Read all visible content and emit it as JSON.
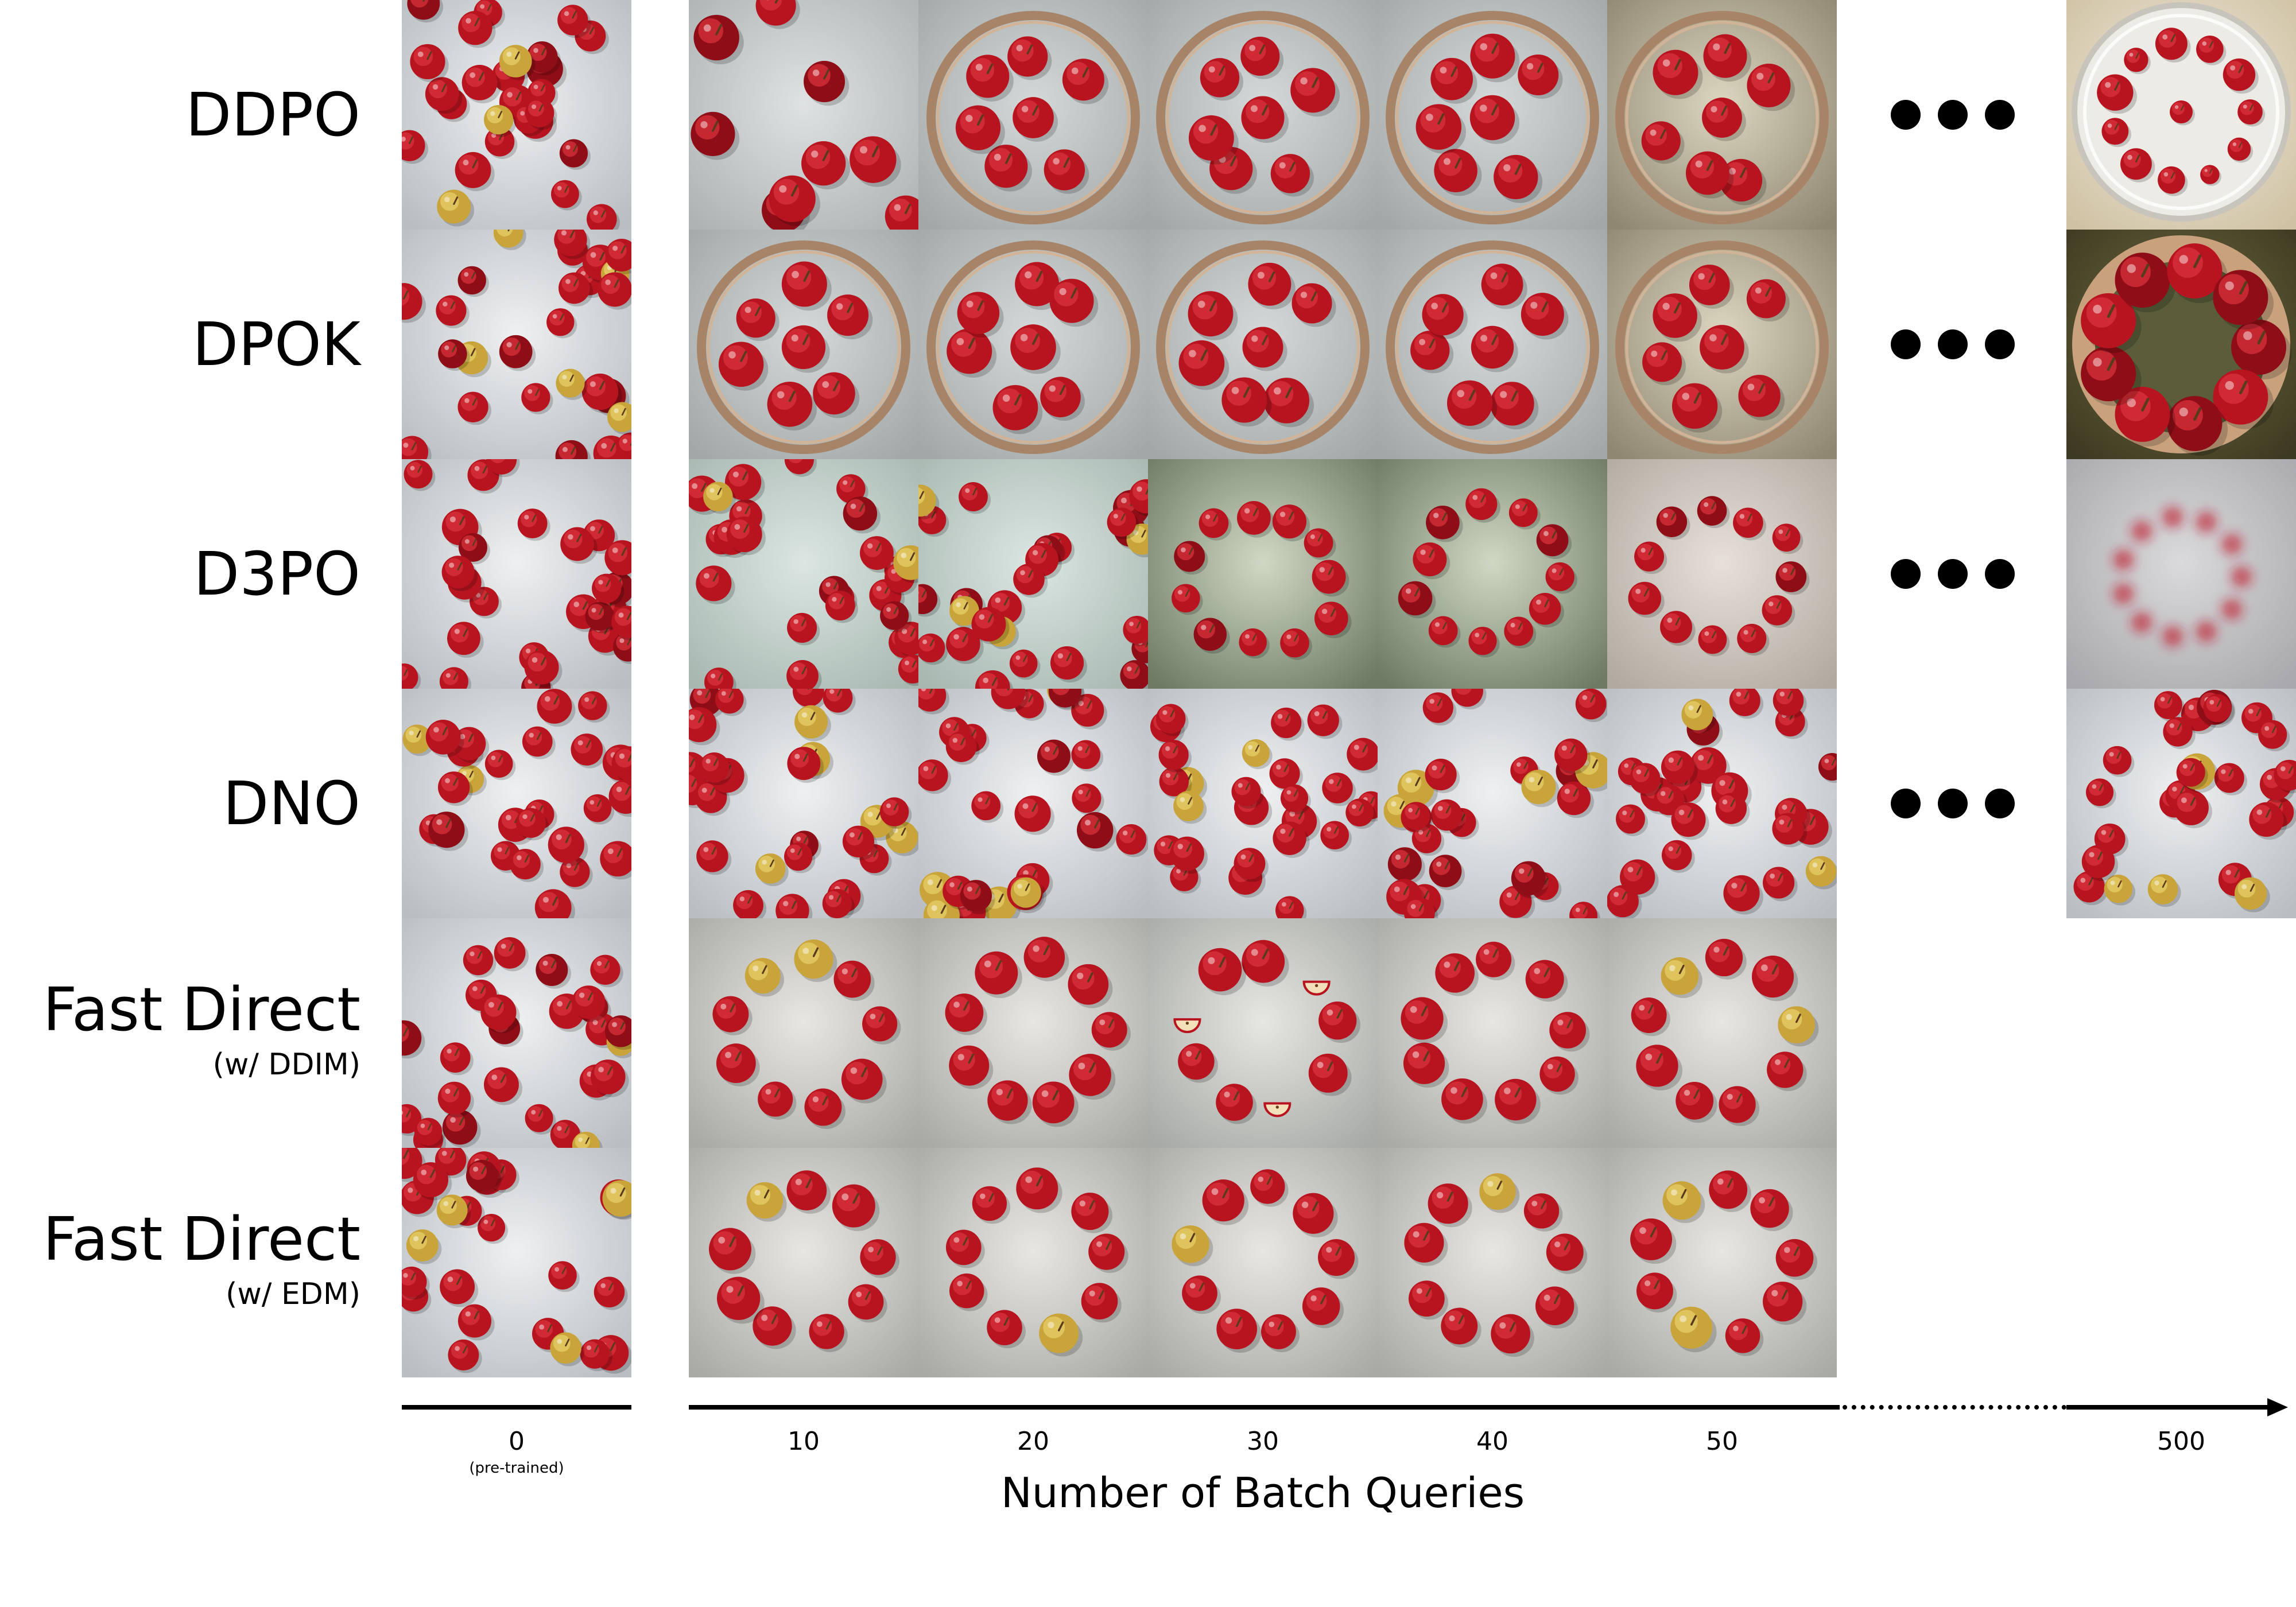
{
  "rows": [
    {
      "label": "DDPO",
      "sub": "",
      "tiles": [
        "scatter",
        "scatter-few",
        "ring-plate",
        "ring-plate",
        "ring-plate",
        "ring-plate-warm"
      ],
      "final": "dish"
    },
    {
      "label": "DPOK",
      "sub": "",
      "tiles": [
        "scatter",
        "ring-plate",
        "ring-plate",
        "ring-plate",
        "ring-plate",
        "ring-plate-warm"
      ],
      "final": "bowl"
    },
    {
      "label": "D3PO",
      "sub": "",
      "tiles": [
        "scatter",
        "scatter-green",
        "scatter-green",
        "loose-green",
        "loose-green",
        "loose-beige"
      ],
      "final": "blur"
    },
    {
      "label": "DNO",
      "sub": "",
      "tiles": [
        "scatter",
        "scatter",
        "scatter",
        "scatter",
        "scatter",
        "scatter"
      ],
      "final": "scatter"
    },
    {
      "label": "Fast Direct",
      "sub": "(w/ DDIM)",
      "tiles": [
        "scatter",
        "circle",
        "circle",
        "circle-sliced",
        "circle",
        "circle"
      ],
      "final": ""
    },
    {
      "label": "Fast Direct",
      "sub": "(w/ EDM)",
      "tiles": [
        "scatter",
        "circle",
        "circle",
        "circle",
        "circle",
        "circle"
      ],
      "final": ""
    }
  ],
  "ticks": [
    {
      "label": "0",
      "sub": "(pre-trained)"
    },
    {
      "label": "10",
      "sub": ""
    },
    {
      "label": "20",
      "sub": ""
    },
    {
      "label": "30",
      "sub": ""
    },
    {
      "label": "40",
      "sub": ""
    },
    {
      "label": "50",
      "sub": ""
    },
    {
      "label": "500",
      "sub": ""
    }
  ],
  "xlabel": "Number of Batch Queries",
  "colors": {
    "apple": "#b8141f",
    "apple_highlight": "#e3414a",
    "grey_bg": "#d9dcdc",
    "plate": "#b48c6c"
  }
}
